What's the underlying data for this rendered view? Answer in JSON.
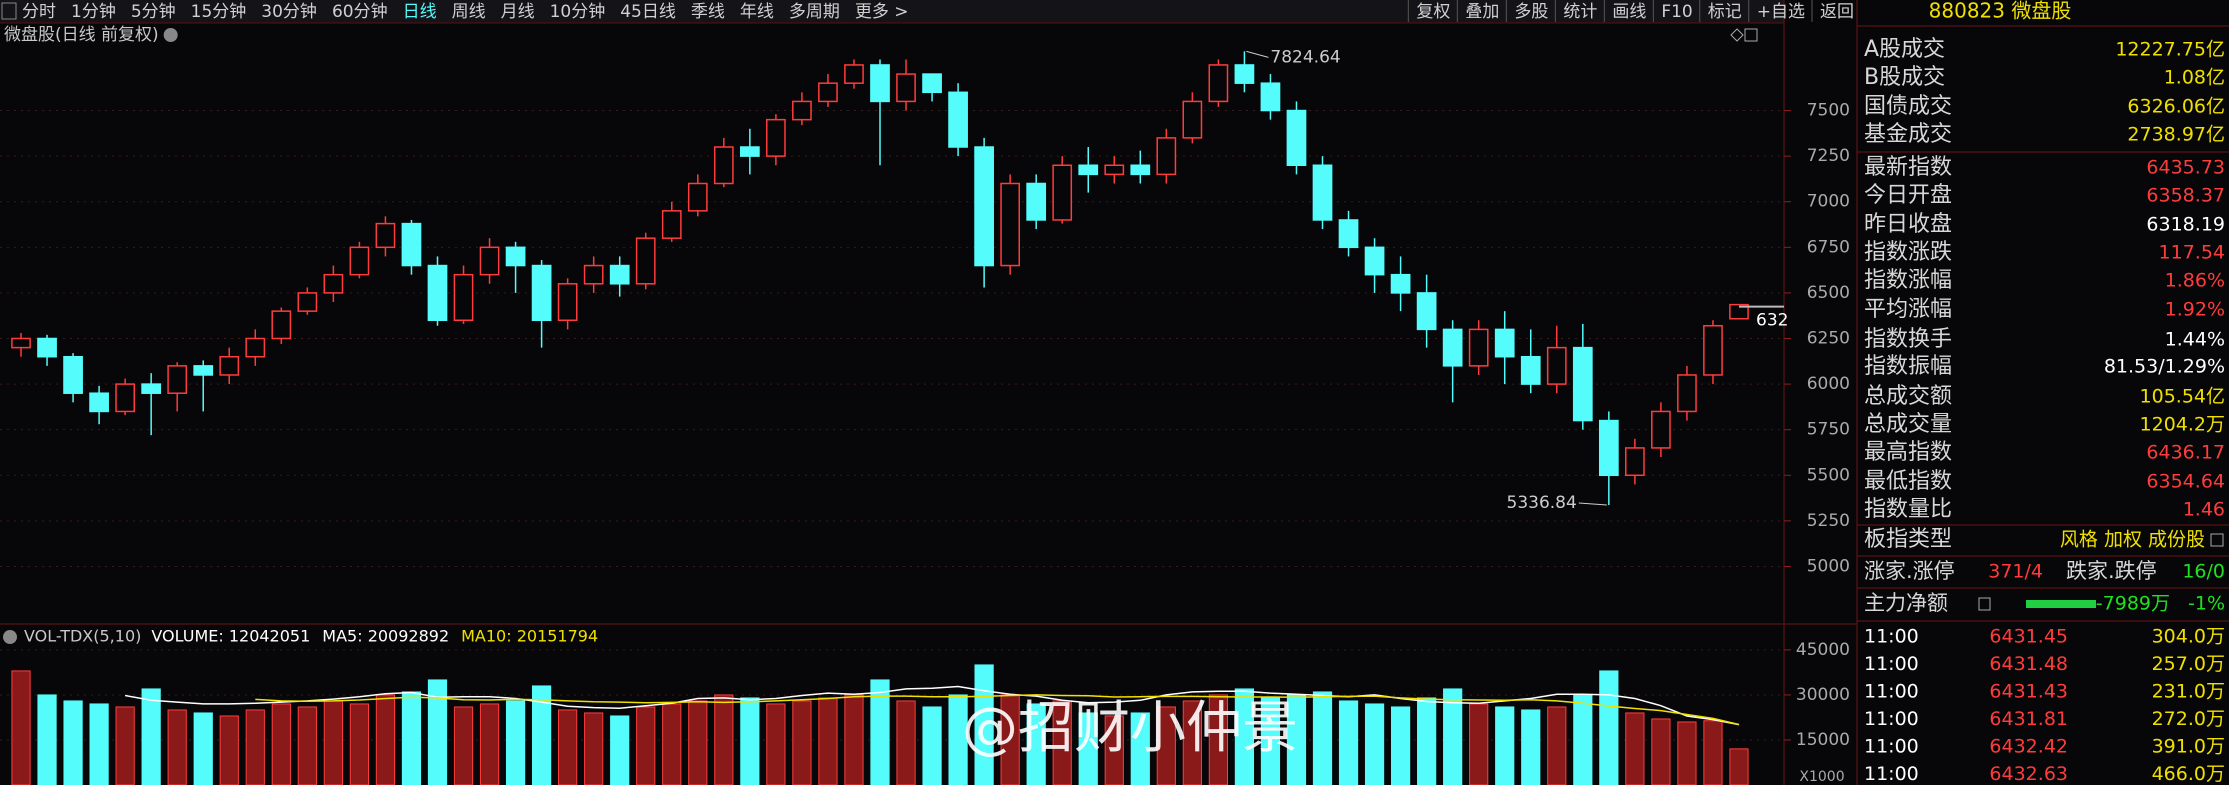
{
  "toolbar": {
    "left": [
      "分时",
      "1分钟",
      "5分钟",
      "15分钟",
      "30分钟",
      "60分钟",
      "日线",
      "周线",
      "月线",
      "10分钟",
      "45日线",
      "季线",
      "年线",
      "多周期",
      "更多 >"
    ],
    "active_index": 6,
    "right": [
      "复权",
      "叠加",
      "多股",
      "统计",
      "画线",
      "F10",
      "标记",
      "+自选",
      "返回"
    ]
  },
  "chart_data": [
    {
      "type": "candlestick",
      "title": "微盘股(日线 前复权)",
      "up_color": "#ff3c3c",
      "down_color": "#54fcfc",
      "ylim": [
        4690,
        7980
      ],
      "yticks": [
        5000,
        5250,
        5500,
        5750,
        6000,
        6250,
        6500,
        6750,
        7000,
        7250,
        7500
      ],
      "grid": true,
      "high_label": "7824.64",
      "low_label": "5336.84",
      "last_label": "632",
      "ohlc": [
        [
          6200,
          6250,
          6150,
          6280
        ],
        [
          6250,
          6150,
          6100,
          6270
        ],
        [
          6150,
          5950,
          5900,
          6170
        ],
        [
          5950,
          5850,
          5780,
          5990
        ],
        [
          5850,
          6000,
          5830,
          6030
        ],
        [
          6000,
          5950,
          5720,
          6060
        ],
        [
          5950,
          6100,
          5850,
          6120
        ],
        [
          6100,
          6050,
          5850,
          6130
        ],
        [
          6050,
          6150,
          6000,
          6200
        ],
        [
          6150,
          6250,
          6100,
          6300
        ],
        [
          6250,
          6400,
          6220,
          6420
        ],
        [
          6400,
          6500,
          6380,
          6530
        ],
        [
          6500,
          6600,
          6450,
          6650
        ],
        [
          6600,
          6750,
          6580,
          6780
        ],
        [
          6750,
          6880,
          6700,
          6920
        ],
        [
          6880,
          6650,
          6600,
          6900
        ],
        [
          6650,
          6350,
          6320,
          6700
        ],
        [
          6350,
          6600,
          6330,
          6650
        ],
        [
          6600,
          6750,
          6550,
          6800
        ],
        [
          6750,
          6650,
          6500,
          6780
        ],
        [
          6650,
          6350,
          6200,
          6680
        ],
        [
          6350,
          6550,
          6300,
          6580
        ],
        [
          6550,
          6650,
          6500,
          6700
        ],
        [
          6650,
          6550,
          6480,
          6700
        ],
        [
          6550,
          6800,
          6520,
          6830
        ],
        [
          6800,
          6950,
          6780,
          7000
        ],
        [
          6950,
          7100,
          6920,
          7150
        ],
        [
          7100,
          7300,
          7080,
          7350
        ],
        [
          7300,
          7250,
          7150,
          7400
        ],
        [
          7250,
          7450,
          7200,
          7480
        ],
        [
          7450,
          7550,
          7420,
          7600
        ],
        [
          7550,
          7650,
          7520,
          7700
        ],
        [
          7650,
          7750,
          7620,
          7780
        ],
        [
          7750,
          7550,
          7200,
          7780
        ],
        [
          7550,
          7700,
          7500,
          7780
        ],
        [
          7700,
          7600,
          7550,
          7700
        ],
        [
          7600,
          7300,
          7250,
          7650
        ],
        [
          7300,
          6650,
          6530,
          7350
        ],
        [
          6650,
          7100,
          6600,
          7150
        ],
        [
          7100,
          6900,
          6850,
          7150
        ],
        [
          6900,
          7200,
          6880,
          7250
        ],
        [
          7200,
          7150,
          7050,
          7300
        ],
        [
          7150,
          7200,
          7100,
          7250
        ],
        [
          7200,
          7150,
          7100,
          7280
        ],
        [
          7150,
          7350,
          7100,
          7400
        ],
        [
          7350,
          7550,
          7320,
          7600
        ],
        [
          7550,
          7750,
          7520,
          7780
        ],
        [
          7750,
          7650,
          7600,
          7824.64
        ],
        [
          7650,
          7500,
          7450,
          7700
        ],
        [
          7500,
          7200,
          7150,
          7550
        ],
        [
          7200,
          6900,
          6850,
          7250
        ],
        [
          6900,
          6750,
          6700,
          6950
        ],
        [
          6750,
          6600,
          6500,
          6800
        ],
        [
          6600,
          6500,
          6400,
          6700
        ],
        [
          6500,
          6300,
          6200,
          6600
        ],
        [
          6300,
          6100,
          5900,
          6350
        ],
        [
          6100,
          6300,
          6050,
          6350
        ],
        [
          6300,
          6150,
          6000,
          6400
        ],
        [
          6150,
          6000,
          5950,
          6300
        ],
        [
          6000,
          6200,
          5950,
          6320
        ],
        [
          6200,
          5800,
          5750,
          6330
        ],
        [
          5800,
          5500,
          5336.84,
          5850
        ],
        [
          5500,
          5650,
          5450,
          5700
        ],
        [
          5650,
          5850,
          5600,
          5900
        ],
        [
          5850,
          6050,
          5800,
          6100
        ],
        [
          6050,
          6320,
          6000,
          6350
        ],
        [
          6358.37,
          6435.73,
          6354.64,
          6436.17
        ]
      ]
    },
    {
      "type": "bar",
      "title": "VOL-TDX(5,10)",
      "volume_text": "VOLUME: 12042051",
      "ma5_text": "MA5: 20092892",
      "ma10_text": "MA10: 20151794",
      "unit": "X1000",
      "ylim": [
        0,
        52300
      ],
      "yticks": [
        15000,
        30000,
        45000
      ],
      "grid": true,
      "values": [
        38000,
        30000,
        28000,
        27000,
        26000,
        32000,
        25000,
        24000,
        23000,
        25000,
        27000,
        26000,
        28000,
        27000,
        30000,
        31000,
        35000,
        26000,
        27000,
        28000,
        33000,
        25000,
        24000,
        23000,
        26000,
        27000,
        28000,
        30000,
        29000,
        27000,
        28000,
        29000,
        30000,
        35000,
        28000,
        26000,
        30000,
        40000,
        30000,
        27000,
        28000,
        24000,
        23000,
        24000,
        26000,
        28000,
        30000,
        32000,
        29000,
        30000,
        31000,
        28000,
        27000,
        26000,
        29000,
        32000,
        27000,
        26000,
        25000,
        26000,
        30000,
        38000,
        24000,
        22000,
        21000,
        21400,
        12042
      ],
      "ma5": {
        "color": "#ffffff",
        "values": [
          null,
          null,
          null,
          null,
          29800,
          28200,
          27600,
          27000,
          27000,
          27200,
          27600,
          28000,
          28600,
          29400,
          30400,
          30800,
          29200,
          29400,
          29400,
          28800,
          27600,
          26200,
          25800,
          25600,
          26400,
          27200,
          28800,
          29000,
          28400,
          28800,
          29800,
          30600,
          30200,
          30800,
          32000,
          32200,
          32800,
          31400,
          30200,
          29600,
          28200,
          27400,
          27600,
          28200,
          30000,
          31000,
          31200,
          31200,
          30600,
          30200,
          29800,
          29400,
          30000,
          28800,
          27800,
          27400,
          27200,
          28000,
          28800,
          30200,
          30200,
          30000,
          28800,
          26400,
          23000,
          21800,
          20093
        ]
      },
      "ma10": {
        "color": "#f0e000",
        "values": [
          null,
          null,
          null,
          null,
          null,
          null,
          null,
          null,
          null,
          28500,
          28000,
          27900,
          28000,
          28300,
          28800,
          29200,
          29000,
          28400,
          28300,
          28500,
          28400,
          28000,
          27700,
          27600,
          27400,
          27500,
          27700,
          27500,
          27700,
          28000,
          28400,
          28800,
          29400,
          29600,
          29600,
          29400,
          29400,
          29500,
          29800,
          30000,
          29800,
          29700,
          29300,
          29400,
          29500,
          29500,
          29400,
          29300,
          29300,
          29200,
          29400,
          29500,
          29600,
          29000,
          28600,
          28400,
          28300,
          28200,
          28400,
          28000,
          27200,
          26300,
          25500,
          24800,
          23500,
          22200,
          20152
        ]
      }
    }
  ],
  "panel": {
    "header": "880823 微盘股",
    "rows": [
      {
        "label": "A股成交",
        "value": "12227.75亿",
        "color": "#f0e000"
      },
      {
        "label": "B股成交",
        "value": "1.08亿",
        "color": "#f0e000"
      },
      {
        "label": "国债成交",
        "value": "6326.06亿",
        "color": "#f0e000"
      },
      {
        "label": "基金成交",
        "value": "2738.97亿",
        "color": "#f0e000"
      },
      {
        "label": "最新指数",
        "value": "6435.73",
        "color": "#ff3c3c"
      },
      {
        "label": "今日开盘",
        "value": "6358.37",
        "color": "#ff3c3c"
      },
      {
        "label": "昨日收盘",
        "value": "6318.19",
        "color": "#ffffff"
      },
      {
        "label": "指数涨跌",
        "value": "117.54",
        "color": "#ff3c3c"
      },
      {
        "label": "指数涨幅",
        "value": "1.86%",
        "color": "#ff3c3c"
      },
      {
        "label": "平均涨幅",
        "value": "1.92%",
        "color": "#ff3c3c"
      },
      {
        "label": "指数换手",
        "value": "1.44%",
        "color": "#ffffff"
      },
      {
        "label": "指数振幅",
        "value": "81.53/1.29%",
        "color": "#ffffff"
      },
      {
        "label": "总成交额",
        "value": "105.54亿",
        "color": "#f0e000"
      },
      {
        "label": "总成交量",
        "value": "1204.2万",
        "color": "#f0e000"
      },
      {
        "label": "最高指数",
        "value": "6436.17",
        "color": "#ff3c3c"
      },
      {
        "label": "最低指数",
        "value": "6354.64",
        "color": "#ff3c3c"
      },
      {
        "label": "指数量比",
        "value": "1.46",
        "color": "#ff3c3c"
      },
      {
        "label": "板指类型",
        "value": "风格 加权 成份股",
        "color": "#f0e000"
      }
    ],
    "breadth": {
      "up_label": "涨家.涨停",
      "up_value": "371/4",
      "down_label": "跌家.跌停",
      "down_value": "16/0"
    },
    "flow": {
      "label": "主力净额",
      "value": "-7989万",
      "pct": "-1%"
    },
    "ticks": [
      [
        "11:00",
        "6431.45",
        "304.0万"
      ],
      [
        "11:00",
        "6431.48",
        "257.0万"
      ],
      [
        "11:00",
        "6431.43",
        "231.0万"
      ],
      [
        "11:00",
        "6431.81",
        "272.0万"
      ],
      [
        "11:00",
        "6432.42",
        "391.0万"
      ],
      [
        "11:00",
        "6432.63",
        "466.0万"
      ]
    ]
  },
  "watermark": "@招财小仲景"
}
